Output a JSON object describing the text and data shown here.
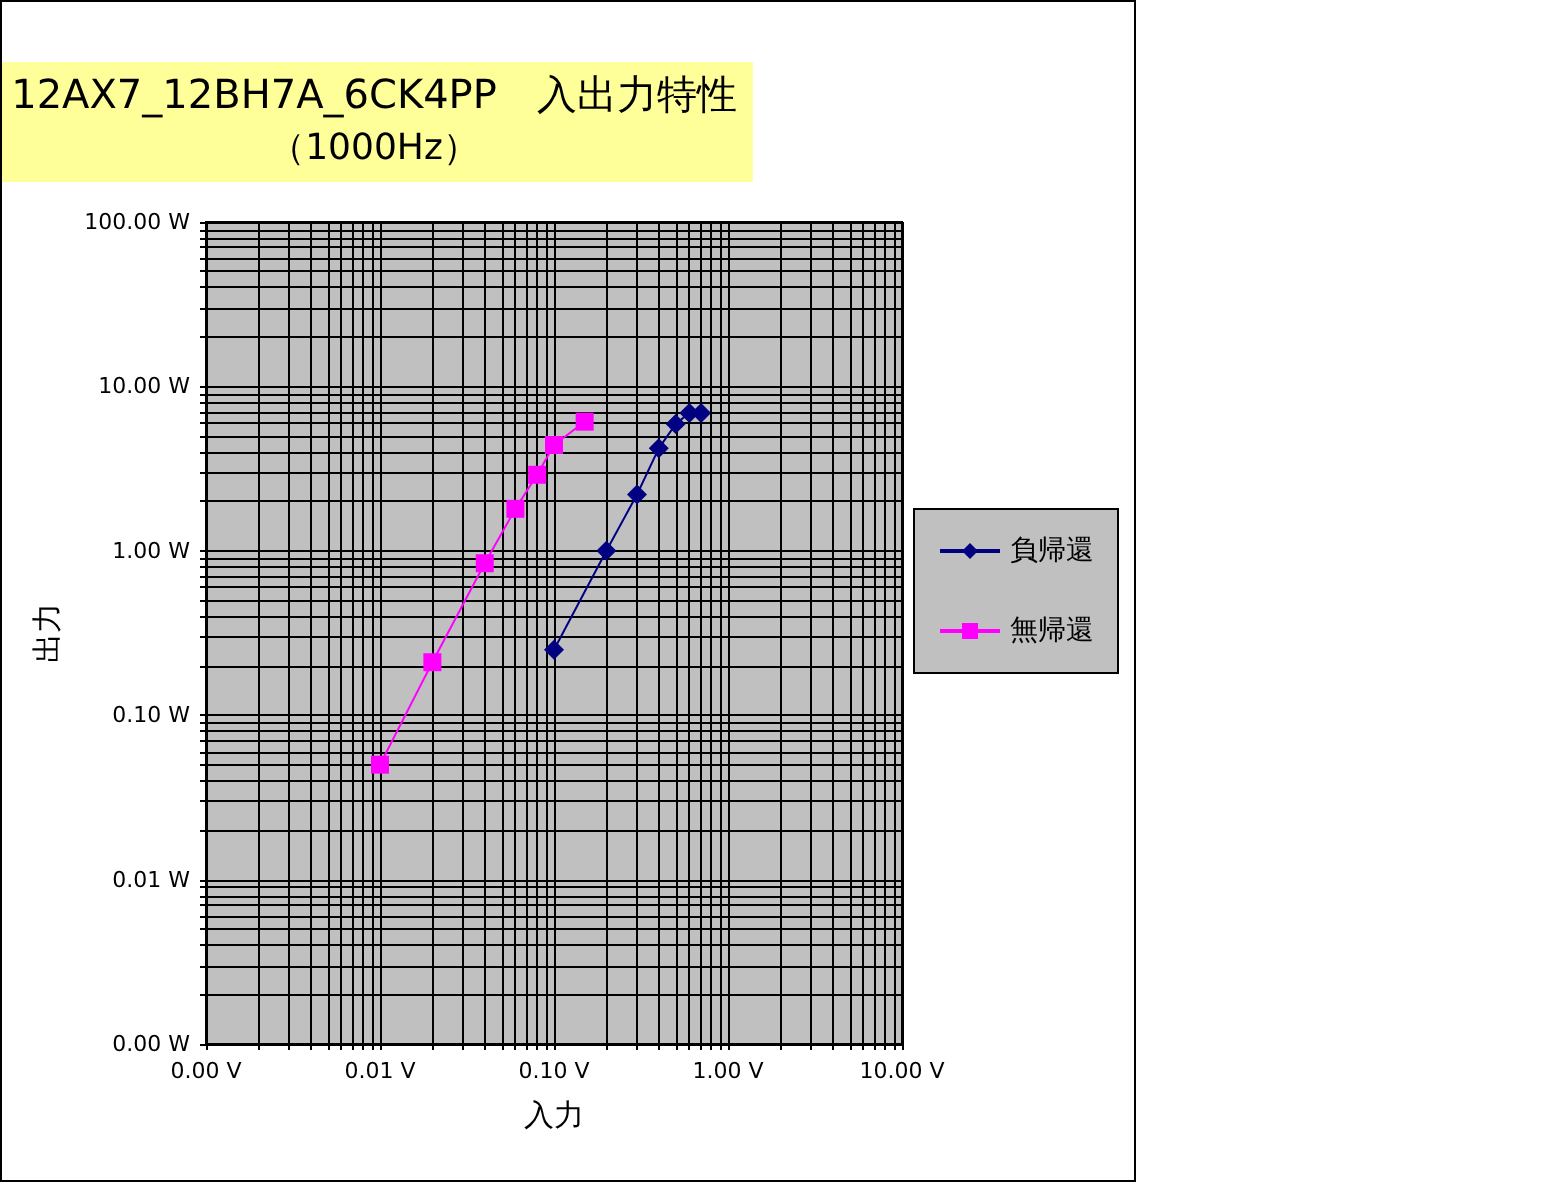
{
  "chart_data": {
    "type": "line",
    "title": "12AX7_12BH7A_6CK4PP　入出力特性",
    "subtitle": "（1000Hz）",
    "xlabel": "入力",
    "ylabel": "出力",
    "log": "xy",
    "grid": true,
    "legend": "right",
    "xlim": [
      0.001,
      10
    ],
    "xticks": [
      {
        "value": 0.001,
        "label": "0.00 V"
      },
      {
        "value": 0.01,
        "label": "0.01 V"
      },
      {
        "value": 0.1,
        "label": "0.10 V"
      },
      {
        "value": 1,
        "label": "1.00 V"
      },
      {
        "value": 10,
        "label": "10.00 V"
      }
    ],
    "ylim": [
      0.001,
      100
    ],
    "yticks": [
      {
        "value": 0.001,
        "label": "0.00 W"
      },
      {
        "value": 0.01,
        "label": "0.01 W"
      },
      {
        "value": 0.1,
        "label": "0.10 W"
      },
      {
        "value": 1,
        "label": "1.00 W"
      },
      {
        "value": 10,
        "label": "10.00 W"
      },
      {
        "value": 100,
        "label": "100.00 W"
      }
    ],
    "series": [
      {
        "name": "負帰還",
        "color": "#000080",
        "marker": "diamond",
        "x": [
          0.1,
          0.2,
          0.3,
          0.4,
          0.5,
          0.6,
          0.7
        ],
        "values": [
          0.25,
          1.0,
          2.2,
          4.2,
          5.9,
          6.9,
          6.9
        ]
      },
      {
        "name": "無帰還",
        "color": "#ff00ff",
        "marker": "square",
        "x": [
          0.01,
          0.02,
          0.04,
          0.06,
          0.08,
          0.1,
          0.15
        ],
        "values": [
          0.05,
          0.21,
          0.84,
          1.8,
          2.9,
          4.4,
          6.1
        ]
      }
    ]
  }
}
